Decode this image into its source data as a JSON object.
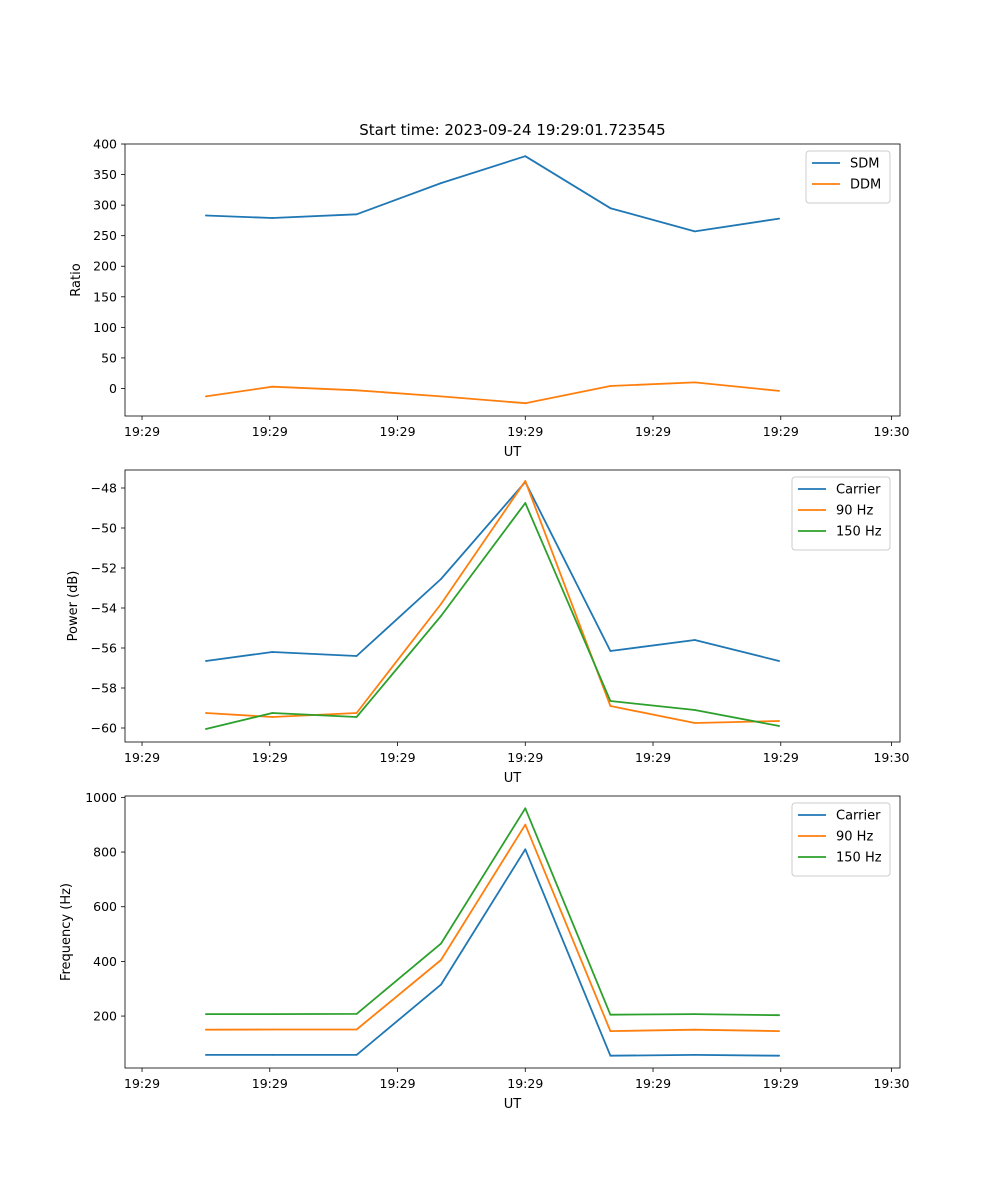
{
  "figure": {
    "title": "Start time: 2023-09-24 19:29:01.723545"
  },
  "chart_data": [
    {
      "type": "line",
      "title": "Start time: 2023-09-24 19:29:01.723545",
      "xlabel": "UT",
      "ylabel": "Ratio",
      "xlim": [
        0,
        9.1
      ],
      "ylim": [
        -45,
        400
      ],
      "xticks": [
        {
          "value": 0.2,
          "label": "19:29"
        },
        {
          "value": 1.7,
          "label": "19:29"
        },
        {
          "value": 3.2,
          "label": "19:29"
        },
        {
          "value": 4.7,
          "label": "19:29"
        },
        {
          "value": 6.2,
          "label": "19:29"
        },
        {
          "value": 7.7,
          "label": "19:29"
        },
        {
          "value": 9.0,
          "label": "19:30"
        }
      ],
      "yticks": [
        {
          "value": 400,
          "label": "400"
        },
        {
          "value": 350,
          "label": "350"
        },
        {
          "value": 300,
          "label": "300"
        },
        {
          "value": 250,
          "label": "250"
        },
        {
          "value": 200,
          "label": "200"
        },
        {
          "value": 150,
          "label": "150"
        },
        {
          "value": 100,
          "label": "100"
        },
        {
          "value": 50,
          "label": "50"
        },
        {
          "value": 0,
          "label": "0"
        }
      ],
      "legend_position": "top-right",
      "x": [
        0.95,
        1.73,
        2.72,
        3.71,
        4.7,
        5.7,
        6.69,
        7.68
      ],
      "series": [
        {
          "name": "SDM",
          "color": "#1f77b4",
          "values": [
            283,
            279,
            285,
            336,
            380,
            295,
            257,
            278
          ]
        },
        {
          "name": "DDM",
          "color": "#ff7f0e",
          "values": [
            -13,
            3,
            -3,
            -13,
            -24,
            4,
            10,
            -4
          ]
        }
      ]
    },
    {
      "type": "line",
      "title": "",
      "xlabel": "UT",
      "ylabel": "Power (dB)",
      "xlim": [
        0,
        9.1
      ],
      "ylim": [
        -60.7,
        -47.1
      ],
      "xticks": [
        {
          "value": 0.2,
          "label": "19:29"
        },
        {
          "value": 1.7,
          "label": "19:29"
        },
        {
          "value": 3.2,
          "label": "19:29"
        },
        {
          "value": 4.7,
          "label": "19:29"
        },
        {
          "value": 6.2,
          "label": "19:29"
        },
        {
          "value": 7.7,
          "label": "19:29"
        },
        {
          "value": 9.0,
          "label": "19:30"
        }
      ],
      "yticks": [
        {
          "value": -48,
          "label": "−48"
        },
        {
          "value": -50,
          "label": "−50"
        },
        {
          "value": -52,
          "label": "−52"
        },
        {
          "value": -54,
          "label": "−54"
        },
        {
          "value": -56,
          "label": "−56"
        },
        {
          "value": -58,
          "label": "−58"
        },
        {
          "value": -60,
          "label": "−60"
        }
      ],
      "legend_position": "top-right",
      "x": [
        0.95,
        1.73,
        2.72,
        3.71,
        4.7,
        5.7,
        6.69,
        7.68
      ],
      "series": [
        {
          "name": "Carrier",
          "color": "#1f77b4",
          "values": [
            -56.65,
            -56.2,
            -56.4,
            -52.55,
            -47.7,
            -56.15,
            -55.6,
            -56.65
          ]
        },
        {
          "name": "90 Hz",
          "color": "#ff7f0e",
          "values": [
            -59.25,
            -59.45,
            -59.25,
            -53.8,
            -47.65,
            -58.9,
            -59.75,
            -59.65
          ]
        },
        {
          "name": "150 Hz",
          "color": "#2ca02c",
          "values": [
            -60.05,
            -59.25,
            -59.45,
            -54.4,
            -48.75,
            -58.65,
            -59.1,
            -59.9
          ]
        }
      ]
    },
    {
      "type": "line",
      "title": "",
      "xlabel": "UT",
      "ylabel": "Frequency (Hz)",
      "xlim": [
        0,
        9.1
      ],
      "ylim": [
        10,
        1005
      ],
      "xticks": [
        {
          "value": 0.2,
          "label": "19:29"
        },
        {
          "value": 1.7,
          "label": "19:29"
        },
        {
          "value": 3.2,
          "label": "19:29"
        },
        {
          "value": 4.7,
          "label": "19:29"
        },
        {
          "value": 6.2,
          "label": "19:29"
        },
        {
          "value": 7.7,
          "label": "19:29"
        },
        {
          "value": 9.0,
          "label": "19:30"
        }
      ],
      "yticks": [
        {
          "value": 1000,
          "label": "1000"
        },
        {
          "value": 800,
          "label": "800"
        },
        {
          "value": 600,
          "label": "600"
        },
        {
          "value": 400,
          "label": "400"
        },
        {
          "value": 200,
          "label": "200"
        }
      ],
      "legend_position": "top-right",
      "x": [
        0.95,
        1.73,
        2.72,
        3.71,
        4.7,
        5.7,
        6.69,
        7.68
      ],
      "series": [
        {
          "name": "Carrier",
          "color": "#1f77b4",
          "values": [
            58,
            58,
            58,
            315,
            810,
            55,
            58,
            55
          ]
        },
        {
          "name": "90 Hz",
          "color": "#ff7f0e",
          "values": [
            150,
            151,
            151,
            405,
            900,
            145,
            150,
            145
          ]
        },
        {
          "name": "150 Hz",
          "color": "#2ca02c",
          "values": [
            207,
            207,
            208,
            465,
            960,
            205,
            207,
            203
          ]
        }
      ]
    }
  ]
}
